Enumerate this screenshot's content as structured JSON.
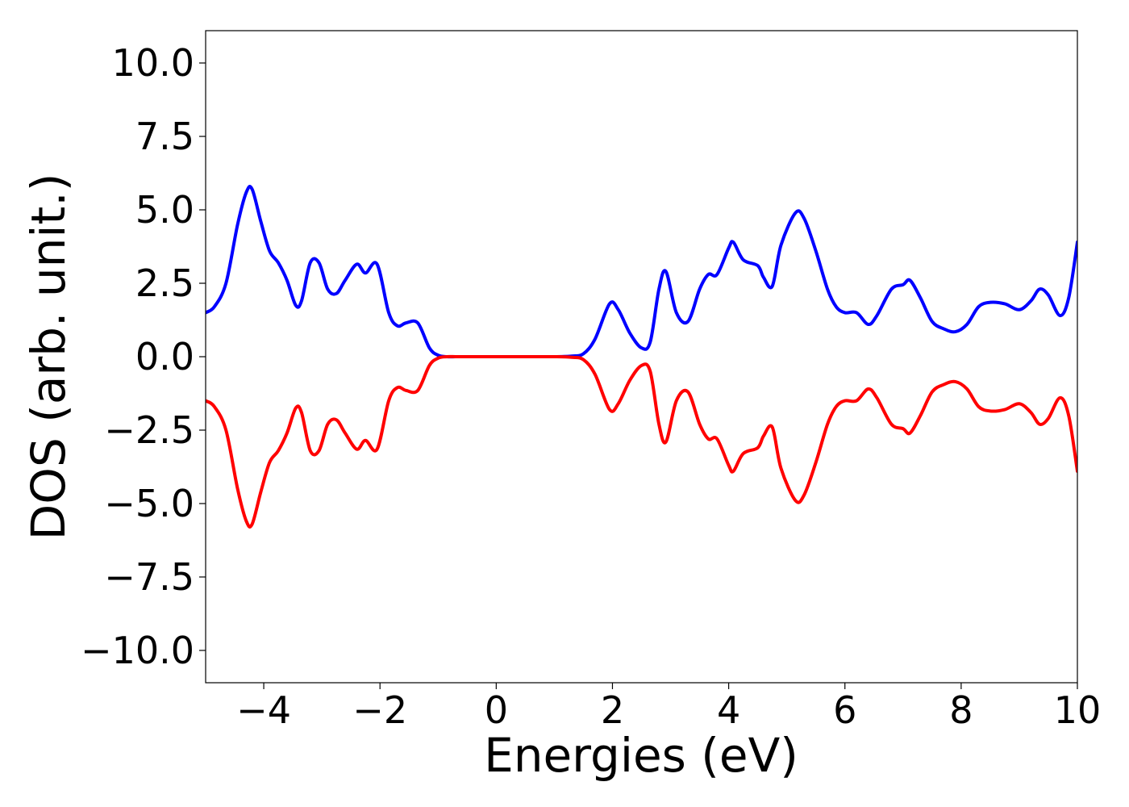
{
  "chart_data": {
    "type": "line",
    "title": "",
    "xlabel": "Energies (eV)",
    "ylabel": "DOS (arb. unit.)",
    "xlim": [
      -5,
      10
    ],
    "ylim": [
      -11.1,
      11.1
    ],
    "grid": false,
    "xticks": [
      -4,
      -2,
      0,
      2,
      4,
      6,
      8,
      10
    ],
    "xtick_labels": [
      "−4",
      "−2",
      "0",
      "2",
      "4",
      "6",
      "8",
      "10"
    ],
    "yticks": [
      10,
      7.5,
      5,
      2.5,
      0,
      -2.5,
      -5,
      -7.5,
      -10
    ],
    "ytick_labels": [
      "10.0",
      "7.5",
      "5.0",
      "2.5",
      "0.0",
      "−2.5",
      "−5.0",
      "−7.5",
      "−10.0"
    ],
    "series": [
      {
        "color": "#0000ff",
        "x": [
          -5.0,
          -4.85,
          -4.65,
          -4.45,
          -4.3,
          -4.2,
          -4.05,
          -3.9,
          -3.75,
          -3.6,
          -3.45,
          -3.35,
          -3.2,
          -3.05,
          -2.9,
          -2.75,
          -2.6,
          -2.4,
          -2.25,
          -2.05,
          -1.85,
          -1.7,
          -1.55,
          -1.35,
          -1.15,
          -1.0,
          -0.85,
          -0.7,
          -0.55,
          -0.4,
          0.0,
          0.5,
          1.0,
          1.3,
          1.5,
          1.7,
          1.95,
          2.1,
          2.3,
          2.5,
          2.65,
          2.8,
          2.92,
          3.1,
          3.3,
          3.5,
          3.65,
          3.8,
          4.0,
          4.08,
          4.25,
          4.5,
          4.6,
          4.75,
          4.9,
          5.15,
          5.3,
          5.5,
          5.7,
          5.85,
          6.0,
          6.2,
          6.4,
          6.55,
          6.8,
          7.0,
          7.12,
          7.3,
          7.5,
          7.7,
          7.9,
          8.1,
          8.3,
          8.5,
          8.75,
          9.0,
          9.2,
          9.35,
          9.5,
          9.7,
          9.85,
          10.0
        ],
        "y": [
          1.5,
          1.7,
          2.5,
          4.5,
          5.6,
          5.7,
          4.6,
          3.6,
          3.2,
          2.6,
          1.75,
          1.9,
          3.2,
          3.2,
          2.3,
          2.15,
          2.6,
          3.15,
          2.85,
          3.15,
          1.5,
          1.05,
          1.15,
          1.15,
          0.3,
          0.05,
          0.0,
          0.0,
          0.0,
          0.0,
          0.0,
          0.0,
          0.0,
          0.02,
          0.1,
          0.6,
          1.8,
          1.6,
          0.8,
          0.3,
          0.5,
          2.3,
          2.9,
          1.5,
          1.2,
          2.3,
          2.8,
          2.8,
          3.7,
          3.9,
          3.3,
          3.1,
          2.7,
          2.4,
          3.8,
          4.9,
          4.7,
          3.6,
          2.3,
          1.7,
          1.5,
          1.5,
          1.1,
          1.4,
          2.3,
          2.45,
          2.6,
          2.0,
          1.2,
          0.95,
          0.85,
          1.1,
          1.7,
          1.85,
          1.8,
          1.6,
          1.9,
          2.3,
          2.1,
          1.4,
          2.0,
          3.9
        ]
      },
      {
        "color": "#ff0000",
        "x": [
          -5.0,
          -4.85,
          -4.65,
          -4.45,
          -4.3,
          -4.2,
          -4.05,
          -3.9,
          -3.75,
          -3.6,
          -3.45,
          -3.35,
          -3.2,
          -3.05,
          -2.9,
          -2.75,
          -2.6,
          -2.4,
          -2.25,
          -2.05,
          -1.85,
          -1.7,
          -1.55,
          -1.35,
          -1.15,
          -1.0,
          -0.85,
          -0.7,
          -0.55,
          -0.4,
          0.0,
          0.5,
          1.0,
          1.3,
          1.5,
          1.7,
          1.95,
          2.1,
          2.3,
          2.5,
          2.65,
          2.8,
          2.92,
          3.1,
          3.3,
          3.5,
          3.65,
          3.8,
          4.0,
          4.08,
          4.25,
          4.5,
          4.6,
          4.75,
          4.9,
          5.15,
          5.3,
          5.5,
          5.7,
          5.85,
          6.0,
          6.2,
          6.4,
          6.55,
          6.8,
          7.0,
          7.12,
          7.3,
          7.5,
          7.7,
          7.9,
          8.1,
          8.3,
          8.5,
          8.75,
          9.0,
          9.2,
          9.35,
          9.5,
          9.7,
          9.85,
          10.0
        ],
        "y": [
          -1.5,
          -1.7,
          -2.5,
          -4.5,
          -5.6,
          -5.7,
          -4.6,
          -3.6,
          -3.2,
          -2.6,
          -1.75,
          -1.9,
          -3.2,
          -3.2,
          -2.3,
          -2.15,
          -2.6,
          -3.15,
          -2.85,
          -3.15,
          -1.5,
          -1.05,
          -1.15,
          -1.15,
          -0.3,
          -0.05,
          0.0,
          0.0,
          0.0,
          0.0,
          0.0,
          0.0,
          0.0,
          -0.02,
          -0.1,
          -0.6,
          -1.8,
          -1.6,
          -0.8,
          -0.3,
          -0.5,
          -2.3,
          -2.9,
          -1.5,
          -1.2,
          -2.3,
          -2.8,
          -2.8,
          -3.7,
          -3.9,
          -3.3,
          -3.1,
          -2.7,
          -2.4,
          -3.8,
          -4.9,
          -4.7,
          -3.6,
          -2.3,
          -1.7,
          -1.5,
          -1.5,
          -1.1,
          -1.4,
          -2.3,
          -2.45,
          -2.6,
          -2.0,
          -1.2,
          -0.95,
          -0.85,
          -1.1,
          -1.7,
          -1.85,
          -1.8,
          -1.6,
          -1.9,
          -2.3,
          -2.1,
          -1.4,
          -2.0,
          -3.9
        ]
      }
    ]
  }
}
